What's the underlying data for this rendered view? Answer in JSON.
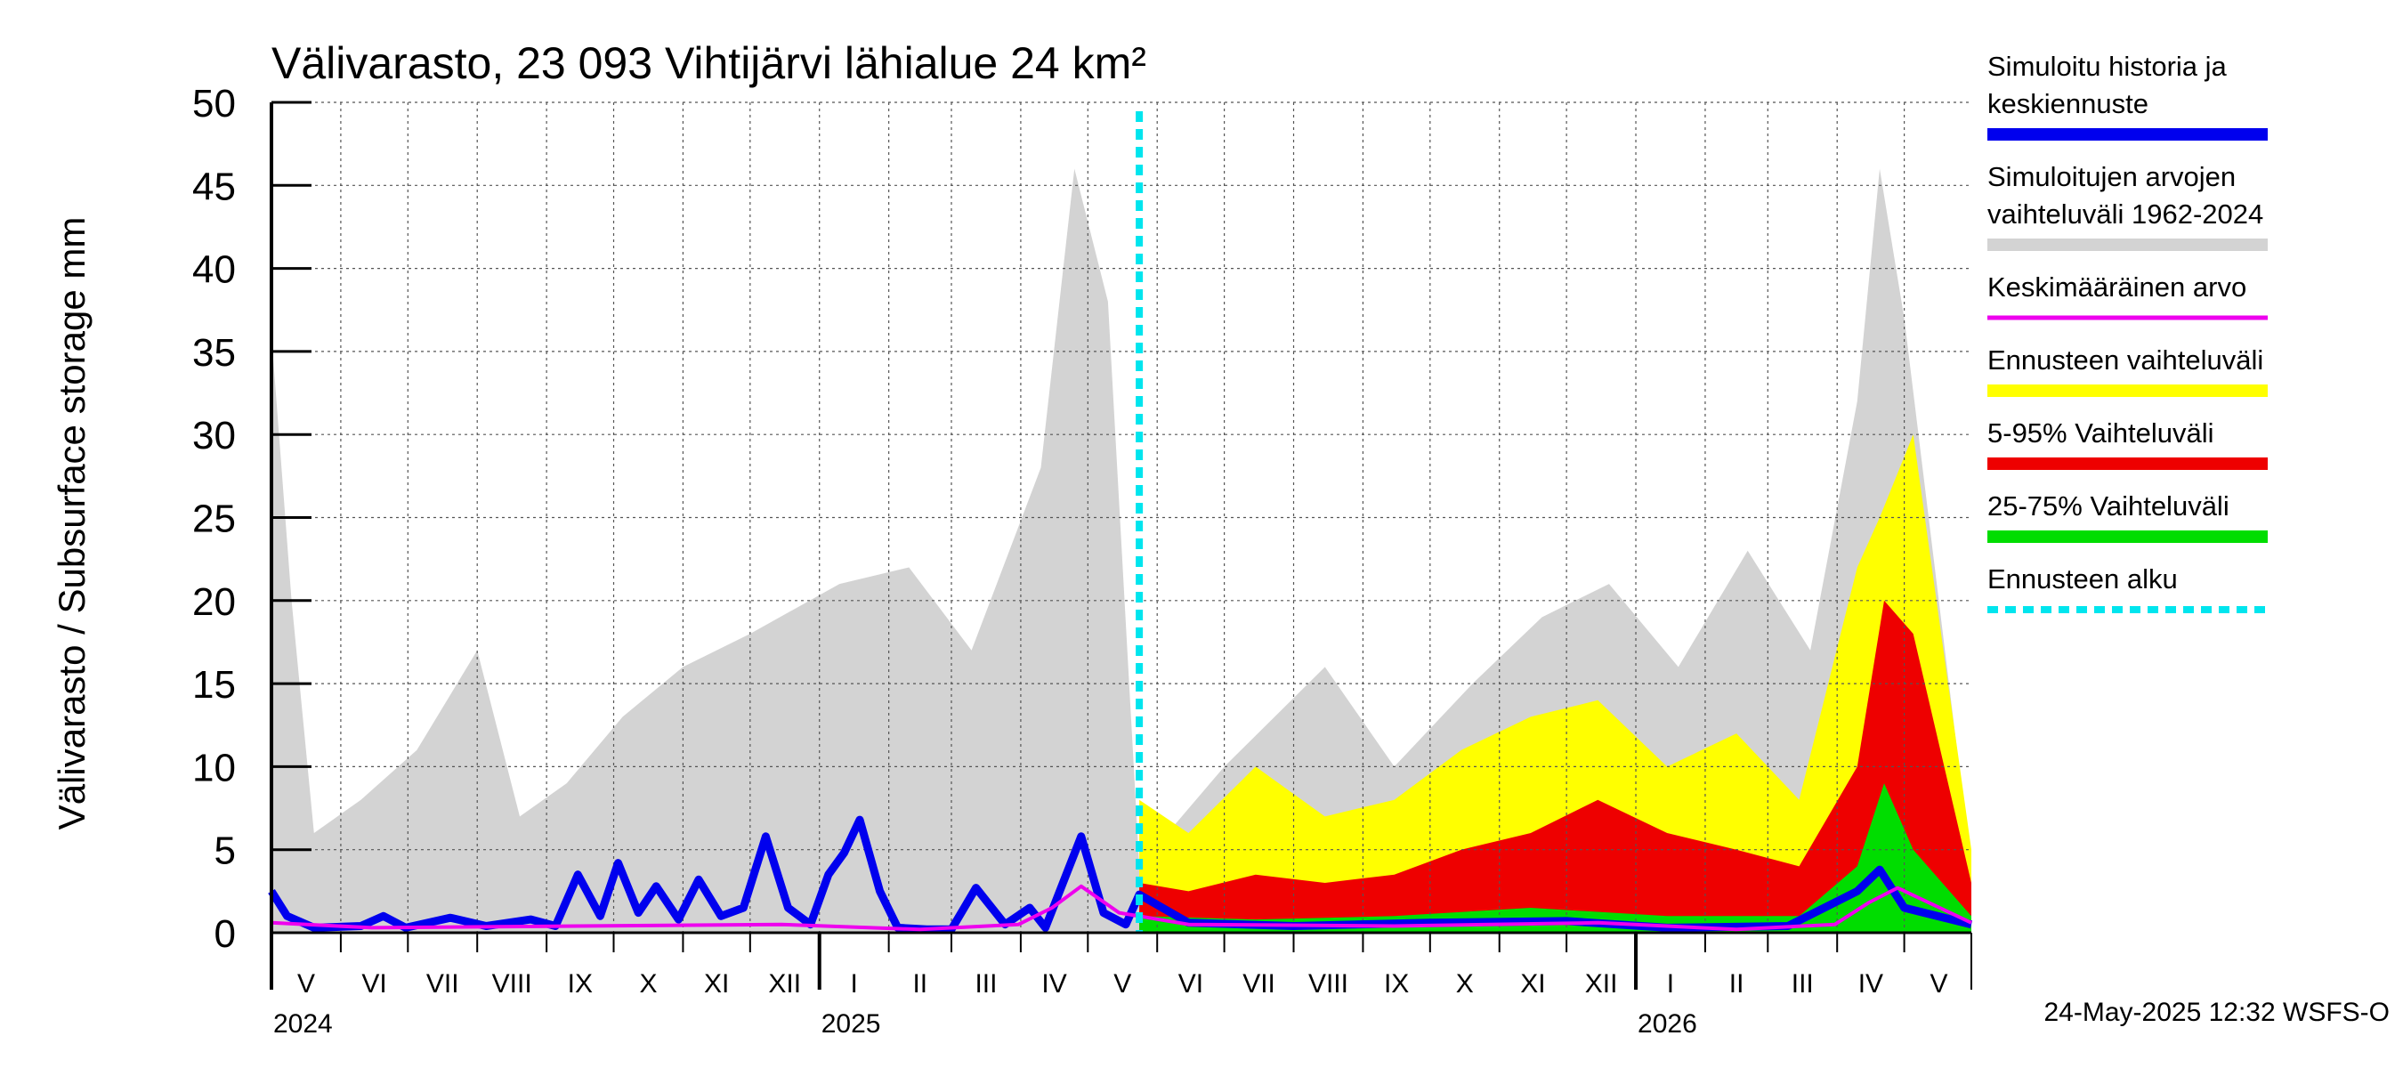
{
  "chart_data": {
    "type": "area",
    "title": "Välivarasto, 23 093 Vihtijärvi lähialue 24 km²",
    "ylabel": "Välivarasto / Subsurface storage  mm",
    "ylim": [
      0,
      50
    ],
    "y_ticks": [
      "0",
      "5",
      "10",
      "15",
      "20",
      "25",
      "30",
      "35",
      "40",
      "45",
      "50"
    ],
    "x_start": "2024-05-01",
    "x_end": "2026-05-31",
    "forecast_start": "2025-05-24",
    "month_labels": [
      "V",
      "VI",
      "VII",
      "VIII",
      "IX",
      "X",
      "XI",
      "XII",
      "I",
      "II",
      "III",
      "IV",
      "V",
      "VI",
      "VII",
      "VIII",
      "IX",
      "X",
      "XI",
      "XII",
      "I",
      "II",
      "III",
      "IV",
      "V"
    ],
    "year_labels": [
      "2024",
      "2025",
      "2026"
    ],
    "grid": true,
    "legend_position": "right",
    "series": [
      {
        "name": "Simuloitu historia ja keskiennuste",
        "color": "#0000ee",
        "points": [
          [
            "2024-05-01",
            2.5
          ],
          [
            "2024-05-08",
            1.0
          ],
          [
            "2024-05-20",
            0.3
          ],
          [
            "2024-06-10",
            0.4
          ],
          [
            "2024-06-20",
            1.0
          ],
          [
            "2024-06-30",
            0.3
          ],
          [
            "2024-07-20",
            0.9
          ],
          [
            "2024-08-05",
            0.4
          ],
          [
            "2024-08-25",
            0.8
          ],
          [
            "2024-09-05",
            0.4
          ],
          [
            "2024-09-15",
            3.5
          ],
          [
            "2024-09-25",
            1.0
          ],
          [
            "2024-10-03",
            4.2
          ],
          [
            "2024-10-12",
            1.2
          ],
          [
            "2024-10-20",
            2.8
          ],
          [
            "2024-10-30",
            0.8
          ],
          [
            "2024-11-08",
            3.2
          ],
          [
            "2024-11-18",
            1.0
          ],
          [
            "2024-11-28",
            1.5
          ],
          [
            "2024-12-08",
            5.8
          ],
          [
            "2024-12-18",
            1.5
          ],
          [
            "2024-12-28",
            0.5
          ],
          [
            "2025-01-05",
            3.5
          ],
          [
            "2025-01-12",
            4.8
          ],
          [
            "2025-01-19",
            6.8
          ],
          [
            "2025-01-28",
            2.5
          ],
          [
            "2025-02-05",
            0.3
          ],
          [
            "2025-02-18",
            0.2
          ],
          [
            "2025-03-01",
            0.2
          ],
          [
            "2025-03-12",
            2.7
          ],
          [
            "2025-03-25",
            0.5
          ],
          [
            "2025-04-05",
            1.5
          ],
          [
            "2025-04-12",
            0.3
          ],
          [
            "2025-04-28",
            5.8
          ],
          [
            "2025-05-08",
            1.2
          ],
          [
            "2025-05-18",
            0.5
          ],
          [
            "2025-05-24",
            2.3
          ],
          [
            "2025-06-15",
            0.6
          ],
          [
            "2025-08-01",
            0.4
          ],
          [
            "2025-10-01",
            0.6
          ],
          [
            "2025-12-01",
            0.7
          ],
          [
            "2026-01-15",
            0.3
          ],
          [
            "2026-03-10",
            0.4
          ],
          [
            "2026-04-10",
            2.5
          ],
          [
            "2026-04-20",
            3.8
          ],
          [
            "2026-05-01",
            1.5
          ],
          [
            "2026-05-31",
            0.5
          ]
        ]
      },
      {
        "name": "Simuloitujen arvojen vaihteluväli 1962-2024",
        "color": "#d3d3d3",
        "points": [
          [
            "2024-05-01",
            36
          ],
          [
            "2024-05-10",
            20
          ],
          [
            "2024-05-20",
            6
          ],
          [
            "2024-06-10",
            8
          ],
          [
            "2024-07-05",
            11
          ],
          [
            "2024-08-01",
            17
          ],
          [
            "2024-08-20",
            7
          ],
          [
            "2024-09-10",
            9
          ],
          [
            "2024-10-05",
            13
          ],
          [
            "2024-11-01",
            16
          ],
          [
            "2024-12-01",
            18
          ],
          [
            "2025-01-10",
            21
          ],
          [
            "2025-02-10",
            22
          ],
          [
            "2025-03-10",
            17
          ],
          [
            "2025-04-10",
            28
          ],
          [
            "2025-04-25",
            46
          ],
          [
            "2025-05-10",
            38
          ],
          [
            "2025-05-24",
            4
          ],
          [
            "2025-07-01",
            10
          ],
          [
            "2025-08-15",
            16
          ],
          [
            "2025-09-15",
            10
          ],
          [
            "2025-10-20",
            15
          ],
          [
            "2025-11-20",
            19
          ],
          [
            "2025-12-20",
            21
          ],
          [
            "2026-01-20",
            16
          ],
          [
            "2026-02-20",
            23
          ],
          [
            "2026-03-20",
            17
          ],
          [
            "2026-04-10",
            32
          ],
          [
            "2026-04-20",
            46
          ],
          [
            "2026-05-01",
            37
          ],
          [
            "2026-05-31",
            4
          ]
        ]
      },
      {
        "name": "Keskimääräinen arvo",
        "color": "#ee00ee",
        "points": [
          [
            "2024-05-01",
            0.6
          ],
          [
            "2024-06-15",
            0.3
          ],
          [
            "2024-09-15",
            0.4
          ],
          [
            "2024-12-15",
            0.5
          ],
          [
            "2025-02-15",
            0.2
          ],
          [
            "2025-03-31",
            0.5
          ],
          [
            "2025-04-15",
            1.5
          ],
          [
            "2025-04-28",
            2.8
          ],
          [
            "2025-05-15",
            1.2
          ],
          [
            "2025-06-15",
            0.5
          ],
          [
            "2025-09-15",
            0.4
          ],
          [
            "2025-12-15",
            0.6
          ],
          [
            "2026-02-15",
            0.2
          ],
          [
            "2026-03-31",
            0.5
          ],
          [
            "2026-04-15",
            1.8
          ],
          [
            "2026-04-28",
            2.7
          ],
          [
            "2026-05-31",
            0.6
          ]
        ]
      },
      {
        "name": "Ennusteen vaihteluväli",
        "color": "#ffff00",
        "points": [
          [
            "2025-05-24",
            8
          ],
          [
            "2025-06-15",
            6
          ],
          [
            "2025-07-15",
            10
          ],
          [
            "2025-08-15",
            7
          ],
          [
            "2025-09-15",
            8
          ],
          [
            "2025-10-15",
            11
          ],
          [
            "2025-11-15",
            13
          ],
          [
            "2025-12-15",
            14
          ],
          [
            "2026-01-15",
            10
          ],
          [
            "2026-02-15",
            12
          ],
          [
            "2026-03-15",
            8
          ],
          [
            "2026-04-10",
            22
          ],
          [
            "2026-04-20",
            25
          ],
          [
            "2026-05-05",
            30
          ],
          [
            "2026-05-31",
            5
          ]
        ]
      },
      {
        "name": "5-95% Vaihteluväli",
        "color": "#ee0000",
        "points": [
          [
            "2025-05-24",
            3
          ],
          [
            "2025-06-15",
            2.5
          ],
          [
            "2025-07-15",
            3.5
          ],
          [
            "2025-08-15",
            3
          ],
          [
            "2025-09-15",
            3.5
          ],
          [
            "2025-10-15",
            5
          ],
          [
            "2025-11-15",
            6
          ],
          [
            "2025-12-15",
            8
          ],
          [
            "2026-01-15",
            6
          ],
          [
            "2026-02-15",
            5
          ],
          [
            "2026-03-15",
            4
          ],
          [
            "2026-04-10",
            10
          ],
          [
            "2026-04-22",
            20
          ],
          [
            "2026-05-05",
            18
          ],
          [
            "2026-05-31",
            3
          ]
        ]
      },
      {
        "name": "25-75% Vaihteluväli",
        "color": "#00dd00",
        "points": [
          [
            "2025-05-24",
            1
          ],
          [
            "2025-07-15",
            0.8
          ],
          [
            "2025-09-15",
            1
          ],
          [
            "2025-11-15",
            1.5
          ],
          [
            "2026-01-15",
            1
          ],
          [
            "2026-03-15",
            1
          ],
          [
            "2026-04-10",
            4
          ],
          [
            "2026-04-22",
            9
          ],
          [
            "2026-05-05",
            5
          ],
          [
            "2026-05-31",
            1
          ]
        ]
      },
      {
        "name": "Ennusteen alku",
        "color": "#00e5ee",
        "points": [
          [
            "2025-05-24",
            0
          ],
          [
            "2025-05-24",
            50
          ]
        ]
      }
    ]
  },
  "legend": [
    {
      "lines": [
        "Simuloitu historia ja",
        "keskiennuste"
      ],
      "color": "#0000ee",
      "style": "thick"
    },
    {
      "lines": [
        "Simuloitujen arvojen",
        "vaihteluväli 1962-2024"
      ],
      "color": "#d3d3d3",
      "style": "thick"
    },
    {
      "lines": [
        "Keskimääräinen arvo"
      ],
      "color": "#ee00ee",
      "style": "thin"
    },
    {
      "lines": [
        "Ennusteen vaihteluväli"
      ],
      "color": "#ffff00",
      "style": "thick"
    },
    {
      "lines": [
        "5-95% Vaihteluväli"
      ],
      "color": "#ee0000",
      "style": "thick"
    },
    {
      "lines": [
        "25-75% Vaihteluväli"
      ],
      "color": "#00dd00",
      "style": "thick"
    },
    {
      "lines": [
        "Ennusteen alku"
      ],
      "color": "#00e5ee",
      "style": "dashed"
    }
  ],
  "footer": "24-May-2025 12:32 WSFS-O"
}
